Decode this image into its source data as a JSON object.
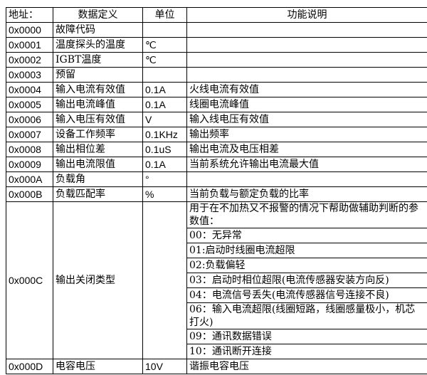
{
  "header": {
    "address": "地址：",
    "definition": "数据定义",
    "unit": "单位",
    "description": "功能说明"
  },
  "rows": [
    {
      "address": "0x0000",
      "definition": "故障代码",
      "unit": "",
      "description": ""
    },
    {
      "address": "0x0001",
      "definition": "温度探头的温度",
      "unit": "℃",
      "description": ""
    },
    {
      "address": "0x0002",
      "definition": "IGBT温度",
      "unit": "℃",
      "description": ""
    },
    {
      "address": "0x0003",
      "definition": "预留",
      "unit": "",
      "description": ""
    },
    {
      "address": "0x0004",
      "definition": "输入电流有效值",
      "unit": "0.1A",
      "description": "火线电流有效值"
    },
    {
      "address": "0x0005",
      "definition": "输出电流峰值",
      "unit": "0.1A",
      "description": "线圈电流峰值"
    },
    {
      "address": "0x0006",
      "definition": "输入电压有效值",
      "unit": "V",
      "description": "输入线电压有效值"
    },
    {
      "address": "0x0007",
      "definition": "设备工作频率",
      "unit": "0.1KHz",
      "description": "输出频率"
    },
    {
      "address": "0x0008",
      "definition": "输出相位差",
      "unit": "0.1uS",
      "description": "输出电流及电压相差"
    },
    {
      "address": "0x0009",
      "definition": "输出电流限值",
      "unit": "0.1A",
      "description": "当前系统允许输出电流最大值"
    },
    {
      "address": "0x000A",
      "definition": "负载角",
      "unit": "°",
      "description": ""
    },
    {
      "address": "0x000B",
      "definition": "负载匹配率",
      "unit": "%",
      "description": "当前负载与额定负载的比率"
    }
  ],
  "shutdown": {
    "address": "0x000C",
    "definition": "输出关闭类型",
    "unit": "",
    "intro": "用于在不加热又不报警的情况下帮助做辅助判断的参数值：",
    "codes": [
      "00：无异常",
      "01:启动时线圈电流超限",
      "02:负载偏轻",
      "03：启动时相位超限(电流传感器安装方向反)",
      "04：电流信号丢失(电流传感器信号连接不良)",
      "06：输入电流超限(线圈短路，线圈感量极小，机芯打火)",
      "09：通讯数据错误",
      "10：通讯断开连接"
    ]
  },
  "last": {
    "address": "0x000D",
    "definition": "电容电压",
    "unit": "10V",
    "description": "谐振电容电压"
  }
}
